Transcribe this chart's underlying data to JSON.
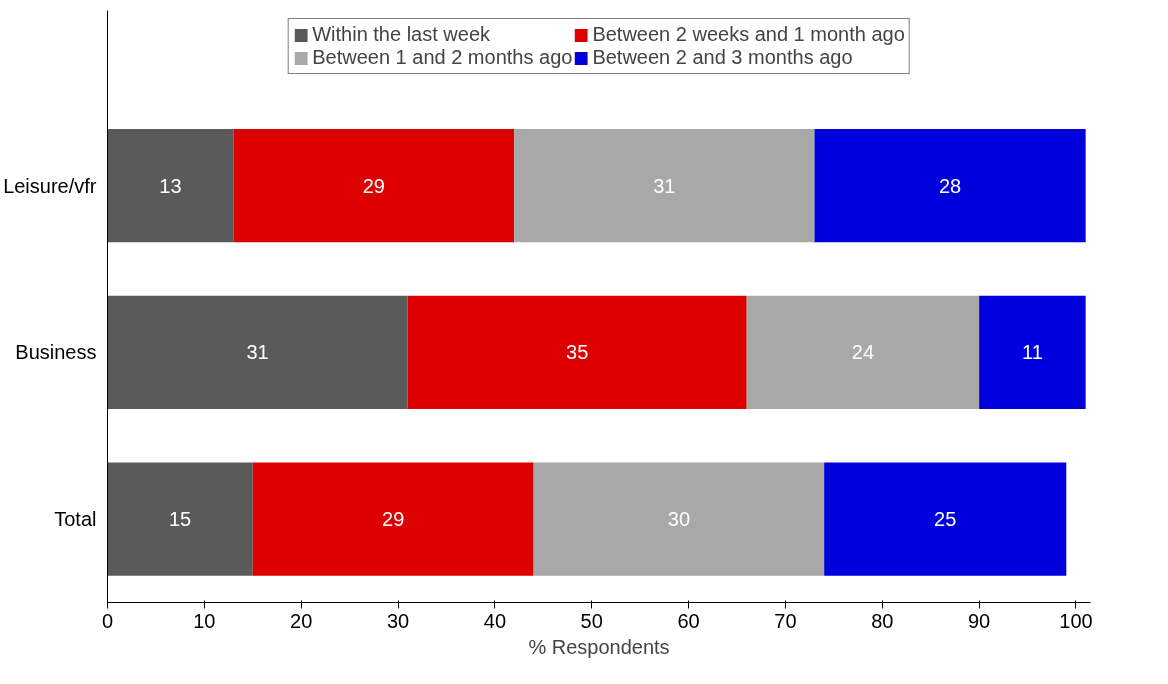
{
  "chart_data": {
    "type": "bar",
    "orientation": "horizontal",
    "stacked": true,
    "xlabel": "% Respondents",
    "categories": [
      "Leisure/vfr",
      "Business",
      "Total"
    ],
    "series": [
      {
        "name": "Within the last week",
        "color": "#5a5a5a",
        "values": [
          13,
          31,
          15
        ]
      },
      {
        "name": "Between 2 weeks and 1 month ago",
        "color": "#dd0000",
        "values": [
          29,
          35,
          29
        ]
      },
      {
        "name": "Between 1 and 2 months ago",
        "color": "#a8a8a8",
        "values": [
          31,
          24,
          30
        ]
      },
      {
        "name": "Between 2 and 3 months ago",
        "color": "#0000dd",
        "values": [
          28,
          11,
          25
        ]
      }
    ],
    "xlim": [
      0,
      101.5
    ],
    "xticks": [
      0,
      10,
      20,
      30,
      40,
      50,
      60,
      70,
      80,
      90,
      100
    ],
    "data_labels": true,
    "grid": false,
    "legend": "top"
  }
}
